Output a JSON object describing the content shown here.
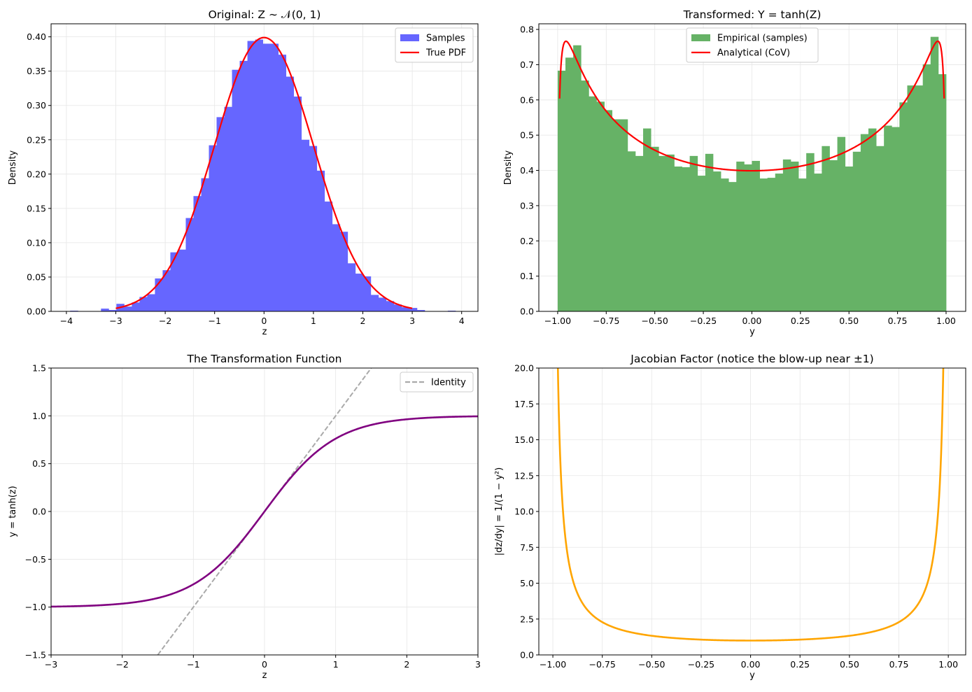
{
  "chart_data": [
    {
      "type": "bar",
      "title": "Original: Z ∼ 𝒩(0, 1)",
      "xlabel": "z",
      "ylabel": "Density",
      "xlim": [
        -4.31,
        4.33
      ],
      "ylim": [
        0,
        0.419
      ],
      "grid": true,
      "legend_placement": "top-right",
      "xticks": [
        -4,
        -3,
        -2,
        -1,
        0,
        1,
        2,
        3,
        4
      ],
      "xtick_labels": [
        "−4",
        "−3",
        "−2",
        "−1",
        "0",
        "1",
        "2",
        "3",
        "4"
      ],
      "yticks": [
        0,
        0.05,
        0.1,
        0.15,
        0.2,
        0.25,
        0.3,
        0.35,
        0.4
      ],
      "ytick_labels": [
        "0.00",
        "0.05",
        "0.10",
        "0.15",
        "0.20",
        "0.25",
        "0.30",
        "0.35",
        "0.40"
      ],
      "histogram": {
        "name": "Samples",
        "color": "#6666ff",
        "bin_start": -3.924,
        "bin_width": 0.156,
        "values": [
          0.001,
          0,
          0,
          0,
          0.004,
          0.002,
          0.011,
          0.007,
          0.013,
          0.021,
          0.025,
          0.048,
          0.06,
          0.086,
          0.09,
          0.136,
          0.168,
          0.194,
          0.242,
          0.283,
          0.298,
          0.352,
          0.365,
          0.394,
          0.396,
          0.39,
          0.39,
          0.374,
          0.342,
          0.313,
          0.25,
          0.241,
          0.205,
          0.16,
          0.127,
          0.116,
          0.07,
          0.055,
          0.051,
          0.024,
          0.02,
          0.015,
          0.01,
          0.006,
          0.005,
          0.002,
          0,
          0,
          0,
          0.001
        ]
      },
      "curve": {
        "name": "True PDF",
        "color": "#ff0000",
        "x_range": [
          -3,
          3
        ],
        "mean": 0,
        "std": 1
      }
    },
    {
      "type": "bar",
      "title": "Transformed: Y = tanh(Z)",
      "xlabel": "y",
      "ylabel": "Density",
      "xlim": [
        -1.097,
        1.101
      ],
      "ylim": [
        0,
        0.816
      ],
      "grid": true,
      "legend_placement": "upper-center",
      "xticks": [
        -1,
        -0.75,
        -0.5,
        -0.25,
        0,
        0.25,
        0.5,
        0.75,
        1
      ],
      "xtick_labels": [
        "−1.00",
        "−0.75",
        "−0.50",
        "−0.25",
        "0.00",
        "0.25",
        "0.50",
        "0.75",
        "1.00"
      ],
      "yticks": [
        0,
        0.1,
        0.2,
        0.3,
        0.4,
        0.5,
        0.6,
        0.7,
        0.8
      ],
      "ytick_labels": [
        "0.0",
        "0.1",
        "0.2",
        "0.3",
        "0.4",
        "0.5",
        "0.6",
        "0.7",
        "0.8"
      ],
      "histogram": {
        "name": "Empirical (samples)",
        "color": "#66b266",
        "bin_start": -1,
        "bin_width": 0.04,
        "values": [
          0.683,
          0.72,
          0.755,
          0.655,
          0.61,
          0.595,
          0.571,
          0.545,
          0.545,
          0.454,
          0.441,
          0.519,
          0.467,
          0.441,
          0.445,
          0.411,
          0.409,
          0.441,
          0.385,
          0.447,
          0.397,
          0.377,
          0.367,
          0.425,
          0.417,
          0.427,
          0.377,
          0.379,
          0.391,
          0.431,
          0.425,
          0.377,
          0.449,
          0.391,
          0.469,
          0.429,
          0.495,
          0.411,
          0.453,
          0.503,
          0.519,
          0.469,
          0.527,
          0.523,
          0.593,
          0.641,
          0.641,
          0.701,
          0.779,
          0.673
        ]
      },
      "curve": {
        "name": "Analytical (CoV)",
        "color": "#ff0000",
        "x_range": [
          -0.99,
          0.99
        ]
      }
    },
    {
      "type": "line",
      "title": "The Transformation Function",
      "xlabel": "z",
      "ylabel": "y = tanh(z)",
      "xlim": [
        -3,
        3
      ],
      "ylim": [
        -1.5,
        1.5
      ],
      "grid": true,
      "legend_placement": "top-right",
      "xticks": [
        -3,
        -2,
        -1,
        0,
        1,
        2,
        3
      ],
      "xtick_labels": [
        "−3",
        "−2",
        "−1",
        "0",
        "1",
        "2",
        "3"
      ],
      "yticks": [
        -1.5,
        -1,
        -0.5,
        0,
        0.5,
        1,
        1.5
      ],
      "ytick_labels": [
        "−1.5",
        "−1.0",
        "−0.5",
        "0.0",
        "0.5",
        "1.0",
        "1.5"
      ],
      "series": [
        {
          "name": "tanh",
          "color": "#800080",
          "x_range": [
            -3,
            3
          ]
        },
        {
          "name": "Identity",
          "color": "#aaaaaa",
          "dashed": true,
          "x_range": [
            -1.5,
            1.5
          ]
        }
      ]
    },
    {
      "type": "line",
      "title": "Jacobian Factor (notice the blow-up near ±1)",
      "xlabel": "y",
      "ylabel": "|dz/dy| = 1/(1 − y²)",
      "xlim": [
        -1.071,
        1.088
      ],
      "ylim": [
        0,
        20
      ],
      "grid": true,
      "xticks": [
        -1,
        -0.75,
        -0.5,
        -0.25,
        0,
        0.25,
        0.5,
        0.75,
        1
      ],
      "xtick_labels": [
        "−1.00",
        "−0.75",
        "−0.50",
        "−0.25",
        "0.00",
        "0.25",
        "0.50",
        "0.75",
        "1.00"
      ],
      "yticks": [
        0,
        2.5,
        5,
        7.5,
        10,
        12.5,
        15,
        17.5,
        20
      ],
      "ytick_labels": [
        "0.0",
        "2.5",
        "5.0",
        "7.5",
        "10.0",
        "12.5",
        "15.0",
        "17.5",
        "20.0"
      ],
      "series": [
        {
          "name": "jacobian",
          "color": "#ffa500",
          "x_range": [
            -0.99,
            0.99
          ]
        }
      ]
    }
  ]
}
